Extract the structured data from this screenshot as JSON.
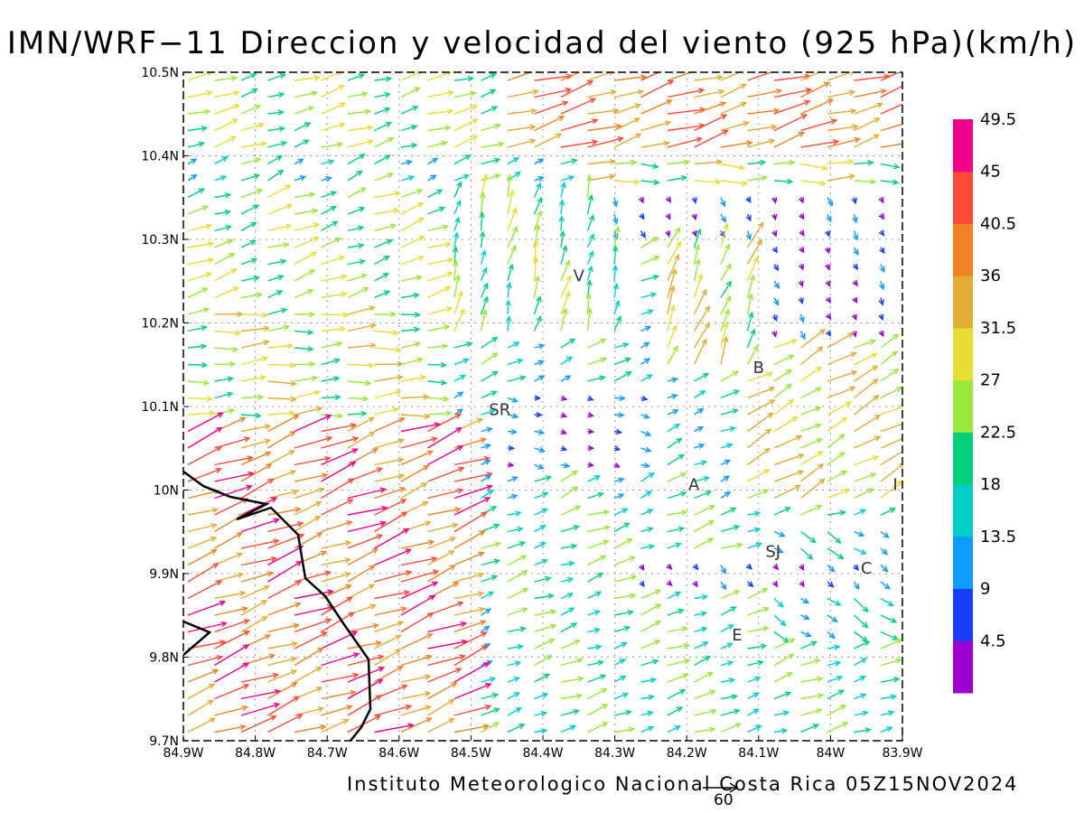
{
  "title": "IMN/WRF−11 Direccion y velocidad del viento (925 hPa)(km/h)",
  "footer": "Instituto Meteorologico Nacional Costa Rica 05Z15NOV2024",
  "vector_scale_label": "60",
  "map": {
    "lon_range": [
      -84.9,
      -83.9
    ],
    "lat_range": [
      9.7,
      10.5
    ],
    "x_ticks": [
      "84.9W",
      "84.8W",
      "84.7W",
      "84.6W",
      "84.5W",
      "84.4W",
      "84.3W",
      "84.2W",
      "84.1W",
      "84W",
      "83.9W"
    ],
    "y_ticks": [
      "9.7N",
      "9.8N",
      "9.9N",
      "10N",
      "10.1N",
      "10.2N",
      "10.3N",
      "10.4N",
      "10.5N"
    ],
    "grid": "dotted",
    "places": [
      {
        "label": "V",
        "lon": -84.35,
        "lat": 10.25
      },
      {
        "label": "SR",
        "lon": -84.46,
        "lat": 10.09
      },
      {
        "label": "B",
        "lon": -84.1,
        "lat": 10.14
      },
      {
        "label": "A",
        "lon": -84.19,
        "lat": 10.0
      },
      {
        "label": "I",
        "lon": -83.91,
        "lat": 10.0
      },
      {
        "label": "SJ",
        "lon": -84.08,
        "lat": 9.92
      },
      {
        "label": "C",
        "lon": -83.95,
        "lat": 9.9
      },
      {
        "label": "E",
        "lon": -84.13,
        "lat": 9.82
      }
    ]
  },
  "colorbar": {
    "colors": [
      "#9c00d0",
      "#1a3cff",
      "#0f9bff",
      "#00cfc8",
      "#00d17a",
      "#9be83a",
      "#e8dd33",
      "#e3ac33",
      "#ef8226",
      "#ff4a3a",
      "#f0008a"
    ],
    "labels": [
      "4.5",
      "9",
      "13.5",
      "18",
      "22.5",
      "27",
      "31.5",
      "36",
      "40.5",
      "45",
      "49.5"
    ]
  }
}
